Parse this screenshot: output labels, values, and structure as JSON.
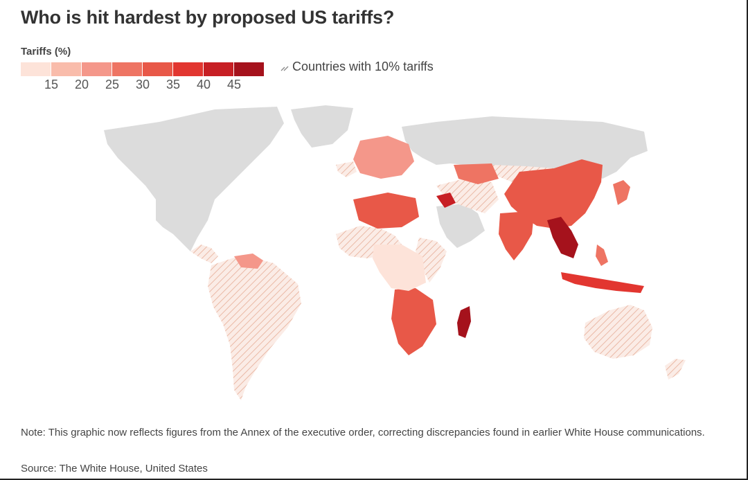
{
  "title": "Who is hit hardest by proposed US tariffs?",
  "legend": {
    "label": "Tariffs (%)",
    "colors": [
      "#fde3d9",
      "#f9bcab",
      "#f4978a",
      "#ee7463",
      "#e85848",
      "#e23630",
      "#c71f24",
      "#a5121c"
    ],
    "ticks": [
      "15",
      "20",
      "25",
      "30",
      "35",
      "40",
      "45"
    ],
    "hatch_label": "Countries with 10% tariffs"
  },
  "map": {
    "land_color": "#dcdcdc",
    "hatch_color": "#f0c4b4",
    "hatch_fill": "#fbece6"
  },
  "note": "Note: This graphic now reflects figures from the Annex of the executive order, correcting discrepancies found in earlier White House communications.",
  "source": "Source: The White House, United States"
}
